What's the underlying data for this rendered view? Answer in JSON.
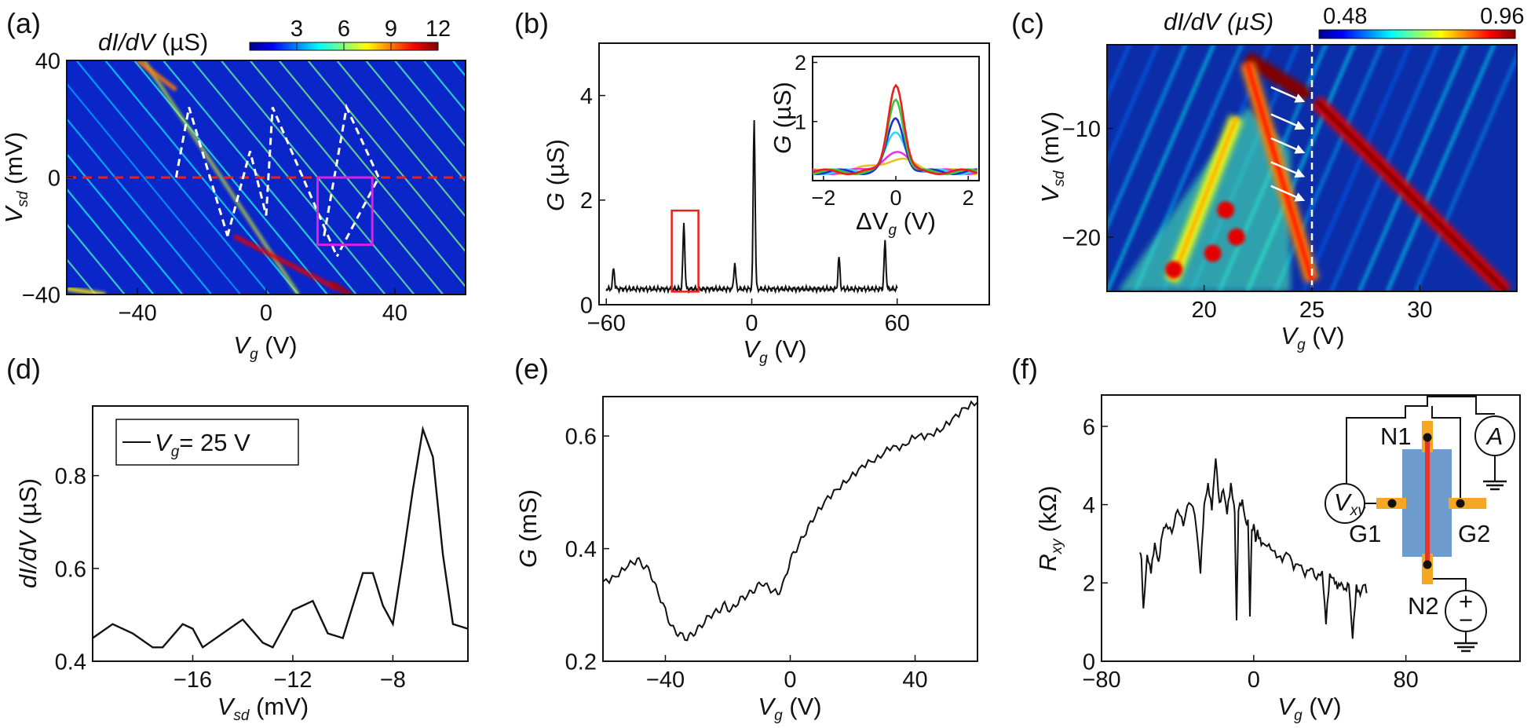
{
  "panel_labels": [
    "(a)",
    "(b)",
    "(c)",
    "(d)",
    "(e)",
    "(f)"
  ],
  "chart_data": [
    {
      "panel": "(a)",
      "type": "heatmap",
      "xlabel": "V",
      "xlabel_sub": "g",
      "xlabel_unit": " (V)",
      "ylabel": "V",
      "ylabel_sub": "sd",
      "ylabel_unit": " (mV)",
      "xticks": [
        -40,
        0,
        40
      ],
      "yticks": [
        40,
        0,
        -40
      ],
      "xlim": [
        -62,
        62
      ],
      "ylim": [
        -40,
        40
      ],
      "colorbar": {
        "label": "dI/dV",
        "unit": " (µS)",
        "ticks": [
          3,
          6,
          9,
          12
        ],
        "range": [
          0,
          12
        ]
      },
      "diamonds": [
        [
          [
            -28,
            0
          ],
          [
            -24,
            24
          ],
          [
            -12,
            -20
          ]
        ],
        [
          [
            -12,
            -20
          ],
          [
            -5,
            9
          ],
          [
            0,
            -13
          ]
        ],
        [
          [
            0,
            -13
          ],
          [
            2,
            24
          ],
          [
            22,
            -27
          ]
        ],
        [
          [
            18,
            -20
          ],
          [
            25,
            24
          ],
          [
            35,
            0
          ],
          [
            22,
            -27
          ]
        ]
      ],
      "red_line_y": 0,
      "box": {
        "x": [
          16,
          33
        ],
        "y": [
          -23,
          0
        ]
      }
    },
    {
      "panel": "(b)",
      "type": "line",
      "xlabel": "V",
      "xlabel_sub": "g",
      "xlabel_unit": " (V)",
      "ylabel": "G",
      "ylabel_unit": " (µS)",
      "xticks": [
        -60,
        0,
        60
      ],
      "yticks": [
        0,
        2,
        4
      ],
      "xlim": [
        -63,
        98
      ],
      "ylim": [
        0,
        5
      ],
      "baseline": 0.3,
      "peaks": [
        {
          "x": -57,
          "height": 0.7
        },
        {
          "x": -28,
          "height": 1.55
        },
        {
          "x": -7,
          "height": 0.8
        },
        {
          "x": 1,
          "height": 3.55
        },
        {
          "x": 36,
          "height": 0.9
        },
        {
          "x": 55,
          "height": 1.2
        }
      ],
      "x_end": 60,
      "highlight_box": {
        "x": [
          -33,
          -22
        ],
        "y": [
          0.25,
          1.8
        ]
      },
      "inset": {
        "xlabel": "ΔV",
        "xlabel_sub": "g",
        "xlabel_unit": " (V)",
        "ylabel": "G",
        "ylabel_unit": " (µS)",
        "xticks": [
          -2,
          0,
          2
        ],
        "yticks": [
          1,
          2
        ],
        "xlim": [
          -2.3,
          2.3
        ],
        "ylim": [
          0,
          2.1
        ],
        "series": [
          {
            "color": "#e8211c",
            "peak": 1.65,
            "width": 0.3
          },
          {
            "color": "#3cc43c",
            "peak": 1.4,
            "width": 0.3
          },
          {
            "color": "#1a2fd6",
            "peak": 1.05,
            "width": 0.32
          },
          {
            "color": "#2fd4f0",
            "peak": 0.78,
            "width": 0.4
          },
          {
            "color": "#ee33dd",
            "peak": 0.45,
            "width": 0.6
          },
          {
            "color": "#e8c21c",
            "peak": 0.35,
            "width": 0.8
          }
        ]
      }
    },
    {
      "panel": "(c)",
      "type": "heatmap",
      "xlabel": "V",
      "xlabel_sub": "g",
      "xlabel_unit": " (V)",
      "ylabel": "V",
      "ylabel_sub": "sd",
      "ylabel_unit": " (mV)",
      "xticks": [
        20,
        25,
        30
      ],
      "yticks": [
        -10,
        -20
      ],
      "xlim": [
        15.5,
        34.5
      ],
      "ylim": [
        -25,
        -2.3
      ],
      "colorbar": {
        "label": "dI/dV",
        "unit": " (µS)",
        "ticks": [
          0.48,
          0.96
        ],
        "range": [
          0.4,
          1.0
        ]
      },
      "ridges": [
        {
          "from": [
            22,
            -3.5
          ],
          "to": [
            24.8,
            -7
          ],
          "level": 1.0
        },
        {
          "from": [
            25.2,
            -7.5
          ],
          "to": [
            34,
            -25
          ],
          "level": 0.9
        },
        {
          "from": [
            22,
            -4
          ],
          "to": [
            25,
            -24
          ],
          "level": 0.75
        },
        {
          "from": [
            21.5,
            -9
          ],
          "to": [
            18.5,
            -24
          ],
          "level": 0.6
        }
      ],
      "spots": [
        [
          21,
          -17.5
        ],
        [
          20.4,
          -21.5
        ],
        [
          21.5,
          -20
        ],
        [
          18.6,
          -23
        ]
      ],
      "vline_x": 25,
      "arrows_y": [
        -7.5,
        -10,
        -12.2,
        -14.4,
        -16.6
      ]
    },
    {
      "panel": "(d)",
      "type": "line",
      "xlabel": "V",
      "xlabel_sub": "sd",
      "xlabel_unit": " (mV)",
      "ylabel": "dI/dV",
      "ylabel_unit": " (µS)",
      "xticks": [
        -16,
        -12,
        -8
      ],
      "yticks": [
        0.4,
        0.6,
        0.8
      ],
      "xlim": [
        -20,
        -5
      ],
      "ylim": [
        0.4,
        0.95
      ],
      "legend": {
        "name": "V",
        "name_sub": "g",
        "text": "= 25 V"
      },
      "x": [
        -20,
        -19.2,
        -18.4,
        -17.6,
        -17.2,
        -16.4,
        -16,
        -15.6,
        -14.8,
        -14,
        -13.2,
        -12.8,
        -12,
        -11.2,
        -10.6,
        -10,
        -9.6,
        -9.2,
        -8.8,
        -8.4,
        -8,
        -7.6,
        -7.2,
        -6.8,
        -6.4,
        -6,
        -5.6,
        -5
      ],
      "y": [
        0.45,
        0.48,
        0.46,
        0.43,
        0.43,
        0.48,
        0.47,
        0.43,
        0.46,
        0.49,
        0.44,
        0.43,
        0.51,
        0.53,
        0.46,
        0.45,
        0.52,
        0.59,
        0.59,
        0.52,
        0.48,
        0.62,
        0.77,
        0.9,
        0.84,
        0.63,
        0.48,
        0.47
      ]
    },
    {
      "panel": "(e)",
      "type": "line",
      "xlabel": "V",
      "xlabel_sub": "g",
      "xlabel_unit": " (V)",
      "ylabel": "G",
      "ylabel_unit": " (mS)",
      "xticks": [
        -40,
        0,
        40
      ],
      "yticks": [
        0.2,
        0.4,
        0.6
      ],
      "xlim": [
        -60,
        60
      ],
      "ylim": [
        0.2,
        0.67
      ],
      "x": [
        -60,
        -56,
        -52,
        -49,
        -47,
        -45,
        -43,
        -40,
        -38,
        -36,
        -33,
        -31,
        -29,
        -26,
        -23,
        -21,
        -19,
        -16,
        -13,
        -11,
        -9,
        -7,
        -4,
        -2,
        0,
        2,
        5,
        8,
        12,
        16,
        20,
        24,
        28,
        32,
        36,
        40,
        44,
        48,
        52,
        56,
        60
      ],
      "y": [
        0.34,
        0.35,
        0.37,
        0.38,
        0.37,
        0.36,
        0.33,
        0.29,
        0.26,
        0.25,
        0.24,
        0.25,
        0.26,
        0.28,
        0.29,
        0.3,
        0.29,
        0.31,
        0.32,
        0.33,
        0.34,
        0.33,
        0.32,
        0.34,
        0.38,
        0.4,
        0.43,
        0.46,
        0.49,
        0.51,
        0.53,
        0.55,
        0.56,
        0.58,
        0.58,
        0.6,
        0.6,
        0.61,
        0.63,
        0.65,
        0.66
      ]
    },
    {
      "panel": "(f)",
      "type": "line",
      "xlabel": "V",
      "xlabel_sub": "g",
      "xlabel_unit": " (V)",
      "ylabel": "R",
      "ylabel_sub": "xy",
      "ylabel_unit": " (kΩ)",
      "xticks": [
        -80,
        0,
        80
      ],
      "yticks": [
        0,
        2,
        4,
        6
      ],
      "xlim": [
        -80,
        140
      ],
      "ylim": [
        0,
        6.8
      ],
      "x": [
        -60,
        -59,
        -58,
        -56,
        -54,
        -52,
        -50,
        -48,
        -46,
        -43,
        -40,
        -37,
        -34,
        -31,
        -28,
        -26,
        -24,
        -22,
        -20,
        -18,
        -16,
        -14,
        -12,
        -11,
        -10,
        -9,
        -8,
        -6,
        -4,
        -3,
        -2,
        -1,
        0,
        1,
        2,
        4,
        6,
        9,
        12,
        15,
        18,
        21,
        24,
        27,
        30,
        33,
        36,
        38,
        40,
        42,
        44,
        46,
        48,
        50,
        52,
        54,
        56,
        58,
        60
      ],
      "y": [
        2.8,
        2.6,
        1.3,
        2.7,
        2.3,
        3.0,
        2.5,
        3.3,
        3.5,
        3.3,
        3.9,
        3.5,
        4.1,
        3.8,
        2.3,
        4.0,
        4.5,
        3.9,
        5.2,
        4.0,
        4.4,
        3.8,
        4.5,
        4.2,
        3.8,
        1.0,
        3.9,
        4.1,
        3.5,
        3.6,
        1.2,
        3.3,
        3.5,
        3.1,
        3.3,
        3.0,
        3.0,
        2.9,
        2.7,
        2.6,
        2.8,
        2.4,
        2.5,
        2.2,
        2.4,
        2.1,
        2.3,
        1.0,
        2.2,
        2.1,
        1.9,
        2.0,
        1.8,
        2.0,
        0.6,
        1.9,
        1.7,
        2.0,
        1.7
      ]
    }
  ],
  "schematic": {
    "labels": {
      "N1": "N1",
      "N2": "N2",
      "G1": "G1",
      "G2": "G2"
    },
    "ammeter": "A",
    "voltmeter": "V",
    "voltmeter_sub": "xy",
    "source_plus": "+",
    "source_minus": "−",
    "colors": {
      "device": "#6e9ccc",
      "contact": "#f5a623",
      "channel": "#e8352b"
    }
  }
}
